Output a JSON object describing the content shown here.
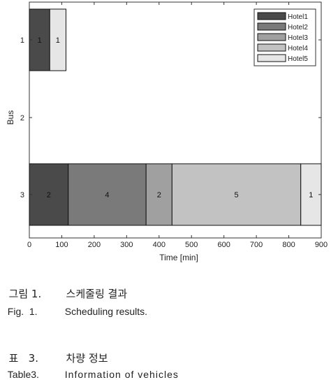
{
  "chart_data": {
    "type": "bar",
    "orientation": "horizontal-stacked-gantt",
    "xlabel": "Time [min]",
    "ylabel": "Bus",
    "xlim": [
      0,
      900
    ],
    "xticks": [
      "0",
      "100",
      "200",
      "300",
      "400",
      "500",
      "600",
      "700",
      "800",
      "900"
    ],
    "yticks": [
      "1",
      "2",
      "3"
    ],
    "grid": false,
    "legend_position": "top-right",
    "legend": [
      "Hotel1",
      "Hotel2",
      "Hotel3",
      "Hotel4",
      "Hotel5"
    ],
    "colors": {
      "Hotel1": "#4a4a4a",
      "Hotel2": "#7a7a7a",
      "Hotel3": "#a0a0a0",
      "Hotel4": "#c2c2c2",
      "Hotel5": "#e6e6e6"
    },
    "segments": [
      {
        "bus": "1",
        "hotel": "Hotel1",
        "start": 0,
        "end": 63,
        "label": "1"
      },
      {
        "bus": "1",
        "hotel": "Hotel5",
        "start": 63,
        "end": 113,
        "label": "1"
      },
      {
        "bus": "3",
        "hotel": "Hotel1",
        "start": 0,
        "end": 120,
        "label": "2"
      },
      {
        "bus": "3",
        "hotel": "Hotel2",
        "start": 120,
        "end": 360,
        "label": "4"
      },
      {
        "bus": "3",
        "hotel": "Hotel3",
        "start": 360,
        "end": 440,
        "label": "2"
      },
      {
        "bus": "3",
        "hotel": "Hotel4",
        "start": 440,
        "end": 837,
        "label": "5"
      },
      {
        "bus": "3",
        "hotel": "Hotel5",
        "start": 837,
        "end": 900,
        "label": "1"
      }
    ]
  },
  "captions": {
    "fig_kr_prefix": "그림 1.",
    "fig_kr_text": "스케줄링 결과",
    "fig_en_prefix": "Fig.  1.",
    "fig_en_text": "Scheduling results.",
    "table_kr_prefix": "표   3.",
    "table_kr_text": "차량 정보",
    "table_en_prefix": "Table3.",
    "table_en_text": "Information of vehicles"
  }
}
